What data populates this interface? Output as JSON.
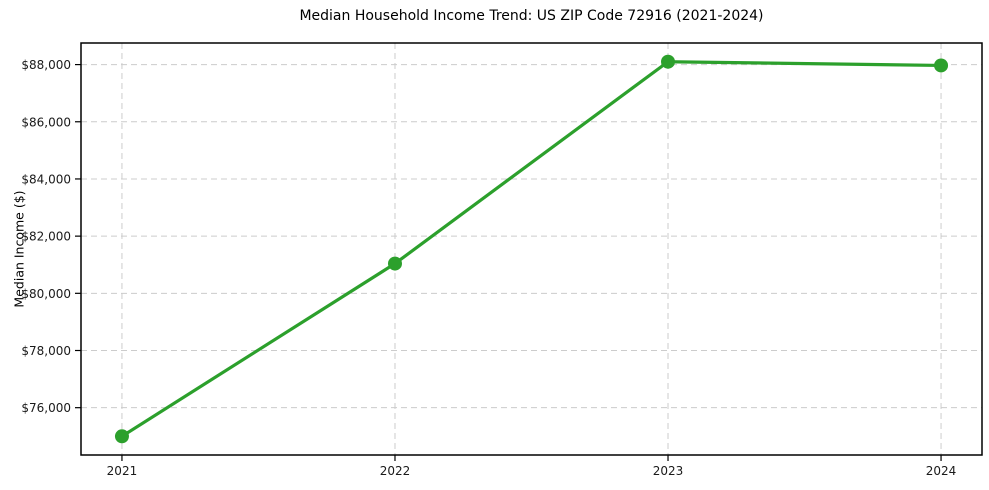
{
  "figure": {
    "background": "#ffffff"
  },
  "chart_data": {
    "type": "line",
    "title": "Median Household Income Trend: US ZIP Code 72916 (2021-2024)",
    "xlabel": "",
    "ylabel": "Median Income ($)",
    "categories": [
      "2021",
      "2022",
      "2023",
      "2024"
    ],
    "x": [
      2021,
      2022,
      2023,
      2024
    ],
    "series": [
      {
        "name": "median-household-income",
        "values": [
          75000,
          81040,
          88100,
          87970
        ],
        "color": "#2ca02c",
        "marker": "circle",
        "marker_size": 7,
        "line_width": 3.2
      }
    ],
    "xlim": [
      2020.85,
      2024.15
    ],
    "ylim": [
      74345,
      88755
    ],
    "xticks": [
      2021,
      2022,
      2023,
      2024
    ],
    "xtick_labels": [
      "2021",
      "2022",
      "2023",
      "2024"
    ],
    "yticks": [
      76000,
      78000,
      80000,
      82000,
      84000,
      86000,
      88000
    ],
    "ytick_labels": [
      "$76,000",
      "$78,000",
      "$80,000",
      "$82,000",
      "$84,000",
      "$86,000",
      "$88,000"
    ],
    "grid": true,
    "grid_style": "dashed",
    "grid_color": "#cccccc",
    "axis_color": "#000000",
    "tick_label_color": "#1a1a1a",
    "legend": "none"
  }
}
